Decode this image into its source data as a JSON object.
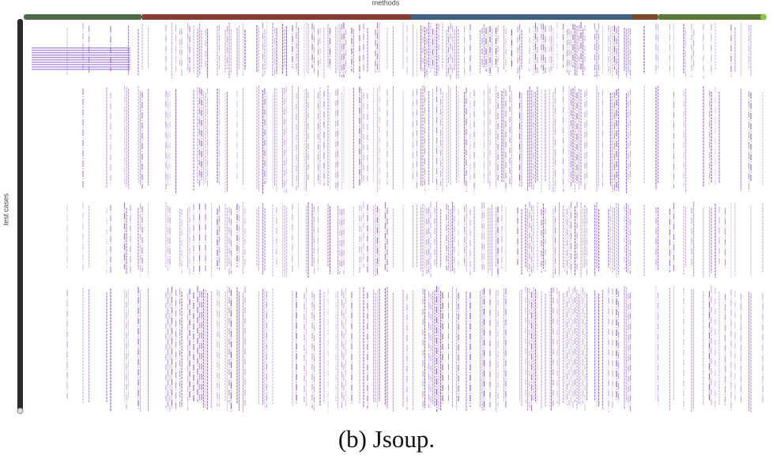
{
  "figure": {
    "x_axis_label": "methods",
    "y_axis_label": "test cases"
  },
  "caption": "(b) Jsoup."
}
